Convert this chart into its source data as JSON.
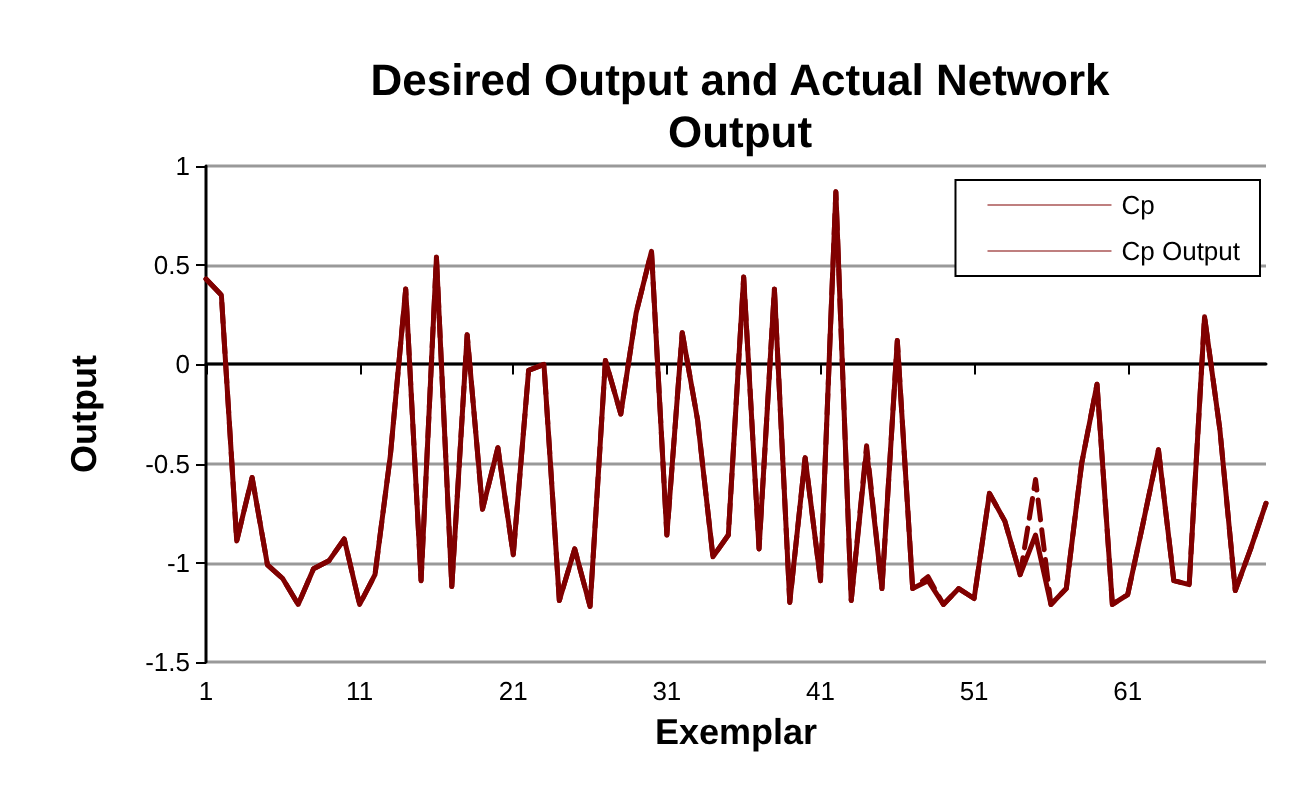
{
  "chart_data": {
    "type": "line",
    "title": "Desired Output and Actual Network\nOutput",
    "xlabel": "Exemplar",
    "ylabel": "Output",
    "x": [
      1,
      2,
      3,
      4,
      5,
      6,
      7,
      8,
      9,
      10,
      11,
      12,
      13,
      14,
      15,
      16,
      17,
      18,
      19,
      20,
      21,
      22,
      23,
      24,
      25,
      26,
      27,
      28,
      29,
      30,
      31,
      32,
      33,
      34,
      35,
      36,
      37,
      38,
      39,
      40,
      41,
      42,
      43,
      44,
      45,
      46,
      47,
      48,
      49,
      50,
      51,
      52,
      53,
      54,
      55,
      56,
      57,
      58,
      59,
      60,
      61,
      62,
      63,
      64,
      65,
      66,
      67,
      68,
      69,
      70
    ],
    "series": [
      {
        "name": "Cp",
        "color": "#800000",
        "line_style": "solid",
        "values": [
          0.43,
          0.35,
          -0.89,
          -0.57,
          -1.01,
          -1.08,
          -1.21,
          -1.03,
          -0.99,
          -0.88,
          -1.21,
          -1.06,
          -0.46,
          0.38,
          -1.09,
          0.54,
          -1.12,
          0.15,
          -0.73,
          -0.42,
          -0.96,
          -0.03,
          0,
          -1.19,
          -0.93,
          -1.22,
          0.02,
          -0.25,
          0.26,
          0.57,
          -0.86,
          0.16,
          -0.28,
          -0.97,
          -0.86,
          0.44,
          -0.93,
          0.38,
          -1.2,
          -0.47,
          -1.09,
          0.87,
          -1.19,
          -0.43,
          -1.13,
          0.12,
          -1.13,
          -1.09,
          -1.21,
          -1.13,
          -1.18,
          -0.65,
          -0.79,
          -1.06,
          -0.86,
          -1.21,
          -1.13,
          -0.5,
          -0.1,
          -1.21,
          -1.16,
          -0.8,
          -0.43,
          -1.09,
          -1.11,
          0.24,
          -0.33,
          -1.14,
          -0.93,
          -0.7
        ]
      },
      {
        "name": "Cp Output",
        "color": "#800000",
        "line_style": "dashed",
        "values": [
          0.43,
          0.35,
          -0.89,
          -0.57,
          -1.01,
          -1.08,
          -1.21,
          -1.03,
          -0.99,
          -0.88,
          -1.21,
          -1.06,
          -0.46,
          0.38,
          -1.09,
          0.54,
          -1.12,
          0.15,
          -0.73,
          -0.42,
          -0.96,
          -0.03,
          0,
          -1.19,
          -0.93,
          -1.22,
          0.02,
          -0.25,
          0.26,
          0.57,
          -0.86,
          0.16,
          -0.28,
          -0.97,
          -0.86,
          0.44,
          -0.93,
          0.38,
          -1.2,
          -0.47,
          -1.09,
          0.87,
          -1.19,
          -0.41,
          -1.13,
          0.12,
          -1.13,
          -1.07,
          -1.21,
          -1.13,
          -1.18,
          -0.65,
          -0.79,
          -1.06,
          -0.58,
          -1.21,
          -1.13,
          -0.5,
          -0.1,
          -1.21,
          -1.16,
          -0.8,
          -0.43,
          -1.09,
          -1.11,
          0.24,
          -0.33,
          -1.14,
          -0.93,
          -0.7
        ]
      }
    ],
    "xlim": [
      1,
      70
    ],
    "xticks": [
      1,
      11,
      21,
      31,
      41,
      51,
      61
    ],
    "ylim": [
      -1.5,
      1
    ],
    "yticks": [
      -1.5,
      -1,
      -0.5,
      0,
      0.5,
      1
    ],
    "grid": "y",
    "legend": "top right",
    "marker": "none"
  }
}
